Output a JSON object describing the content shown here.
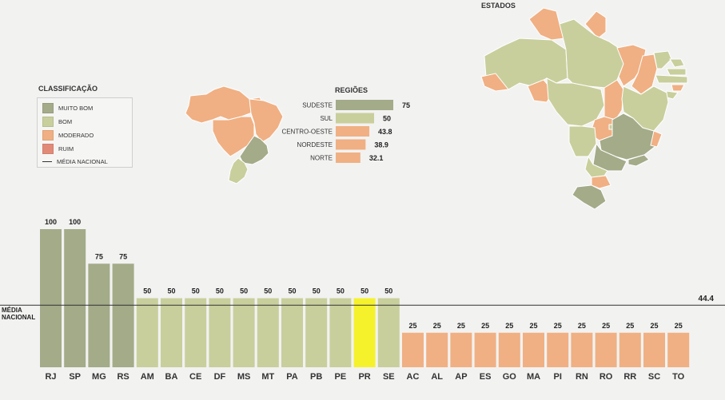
{
  "legend": {
    "title": "CLASSIFICAÇÃO",
    "items": [
      {
        "label": "MUITO BOM",
        "color": "#a3ab89"
      },
      {
        "label": "BOM",
        "color": "#c9cf9c"
      },
      {
        "label": "MODERADO",
        "color": "#f0b083"
      },
      {
        "label": "RUIM",
        "color": "#e28a78"
      },
      {
        "label": "MÉDIA NACIONAL",
        "color": "#333333"
      }
    ]
  },
  "maps": {
    "estados_title": "ESTADOS",
    "colors": {
      "muito_bom": "#a3ab89",
      "bom": "#c9cf9c",
      "moderado": "#f0b083"
    }
  },
  "chart_data": [
    {
      "type": "bar",
      "title": "REGIÕES",
      "orientation": "horizontal",
      "categories": [
        "SUDESTE",
        "SUL",
        "CENTRO-OESTE",
        "NORDESTE",
        "NORTE"
      ],
      "values": [
        75,
        50,
        43.8,
        38.9,
        32.1
      ],
      "value_labels": [
        "75",
        "50",
        "43.8",
        "38.9",
        "32.1"
      ],
      "colors": [
        "#a3ab89",
        "#c9cf9c",
        "#f0b083",
        "#f0b083",
        "#f0b083"
      ]
    },
    {
      "type": "bar",
      "title": "",
      "categories": [
        "RJ",
        "SP",
        "MG",
        "RS",
        "AM",
        "BA",
        "CE",
        "DF",
        "MS",
        "MT",
        "PA",
        "PB",
        "PE",
        "PR",
        "SE",
        "AC",
        "AL",
        "AP",
        "ES",
        "GO",
        "MA",
        "PI",
        "RN",
        "RO",
        "RR",
        "SC",
        "TO"
      ],
      "values": [
        100,
        100,
        75,
        75,
        50,
        50,
        50,
        50,
        50,
        50,
        50,
        50,
        50,
        50,
        50,
        25,
        25,
        25,
        25,
        25,
        25,
        25,
        25,
        25,
        25,
        25,
        25
      ],
      "classes": [
        "muito_bom",
        "muito_bom",
        "muito_bom",
        "muito_bom",
        "bom",
        "bom",
        "bom",
        "bom",
        "bom",
        "bom",
        "bom",
        "bom",
        "bom",
        "highlight",
        "bom",
        "moderado",
        "moderado",
        "moderado",
        "moderado",
        "moderado",
        "moderado",
        "moderado",
        "moderado",
        "moderado",
        "moderado",
        "moderado",
        "moderado"
      ],
      "class_colors": {
        "muito_bom": "#a3ab89",
        "bom": "#c9cf9c",
        "moderado": "#f0b083",
        "highlight": "#f5f22c"
      },
      "reference_line": {
        "label_line1": "MÉDIA",
        "label_line2": "NACIONAL",
        "value": 44.4,
        "value_label": "44.4"
      },
      "ylim": [
        0,
        100
      ]
    }
  ]
}
